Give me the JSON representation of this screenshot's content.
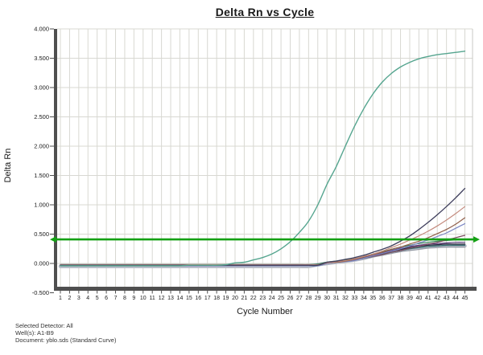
{
  "title": "Delta Rn vs Cycle",
  "y_axis": {
    "label": "Delta Rn",
    "ticks": [
      "4.000",
      "3.500",
      "3.000",
      "2.500",
      "2.000",
      "1.500",
      "1.000",
      "0.500",
      "0.000",
      "-0.500"
    ]
  },
  "x_axis": {
    "label": "Cycle Number",
    "ticks": [
      1,
      2,
      3,
      4,
      5,
      6,
      7,
      8,
      9,
      10,
      11,
      12,
      13,
      14,
      15,
      16,
      17,
      18,
      19,
      20,
      21,
      22,
      23,
      24,
      25,
      26,
      27,
      28,
      29,
      30,
      31,
      32,
      33,
      34,
      35,
      36,
      37,
      38,
      39,
      40,
      41,
      42,
      43,
      44,
      45
    ]
  },
  "footer": {
    "lines": [
      "Selected Detector: All",
      "Well(s): A1-B9",
      "Document: yblo.sds (Standard Curve)"
    ]
  },
  "chart_data": {
    "type": "line",
    "title": "Delta Rn vs Cycle",
    "xlabel": "Cycle Number",
    "ylabel": "Delta Rn",
    "xlim": [
      1,
      45
    ],
    "ylim": [
      -0.5,
      4.0
    ],
    "grid": true,
    "grid_color": "#d8d8d2",
    "axis_color": "#4f4f4f",
    "threshold": {
      "value": 0.41,
      "color": "#14a014"
    },
    "series_note": "values are Delta Rn per cycle; baseline value holds from cycle 1 until tail_start, then tail lists one value per cycle to 45",
    "series": [
      {
        "name": "curve-gray-band",
        "color": "#b6bac5",
        "width": 4.5,
        "baseline": -0.05,
        "tail_start": 29,
        "tail": [
          -0.02,
          0.0,
          0.02,
          0.04,
          0.06,
          0.09,
          0.13,
          0.16,
          0.2,
          0.23,
          0.26,
          0.28,
          0.29,
          0.3,
          0.3,
          0.3,
          0.3
        ]
      },
      {
        "name": "curve-medium-gray",
        "color": "#9298a3",
        "width": 1.2,
        "baseline": -0.03,
        "tail_start": 30,
        "tail": [
          0.0,
          0.02,
          0.04,
          0.06,
          0.08,
          0.11,
          0.14,
          0.17,
          0.2,
          0.22,
          0.24,
          0.26,
          0.27,
          0.28,
          0.28,
          0.28
        ]
      },
      {
        "name": "curve-dark-teal",
        "color": "#2f6b6b",
        "width": 1.2,
        "baseline": -0.04,
        "tail_start": 30,
        "tail": [
          0.0,
          0.02,
          0.04,
          0.06,
          0.09,
          0.12,
          0.16,
          0.19,
          0.22,
          0.25,
          0.27,
          0.29,
          0.3,
          0.31,
          0.31,
          0.31
        ]
      },
      {
        "name": "curve-dark-navy",
        "color": "#28283e",
        "width": 1.3,
        "baseline": -0.02,
        "tail_start": 30,
        "tail": [
          0.01,
          0.03,
          0.05,
          0.08,
          0.1,
          0.13,
          0.17,
          0.21,
          0.24,
          0.27,
          0.29,
          0.31,
          0.32,
          0.33,
          0.33,
          0.33
        ]
      },
      {
        "name": "curve-purple",
        "color": "#5e3b7a",
        "width": 1.2,
        "baseline": -0.03,
        "tail_start": 30,
        "tail": [
          0.01,
          0.03,
          0.05,
          0.08,
          0.11,
          0.14,
          0.18,
          0.22,
          0.26,
          0.29,
          0.31,
          0.33,
          0.34,
          0.35,
          0.36,
          0.36
        ]
      },
      {
        "name": "curve-green",
        "color": "#2e7d50",
        "width": 1.2,
        "baseline": -0.02,
        "tail_start": 29,
        "tail": [
          -0.01,
          0.02,
          0.04,
          0.06,
          0.08,
          0.12,
          0.16,
          0.2,
          0.24,
          0.28,
          0.31,
          0.34,
          0.36,
          0.38,
          0.39,
          0.4,
          0.4
        ]
      },
      {
        "name": "curve-maroon",
        "color": "#7a4a5e",
        "width": 1.2,
        "baseline": -0.03,
        "tail_start": 30,
        "tail": [
          0.01,
          0.02,
          0.04,
          0.06,
          0.09,
          0.12,
          0.15,
          0.19,
          0.22,
          0.26,
          0.29,
          0.33,
          0.36,
          0.4,
          0.44,
          0.48
        ]
      },
      {
        "name": "curve-periwinkle",
        "color": "#7c87c3",
        "width": 1.2,
        "baseline": -0.04,
        "tail_start": 30,
        "tail": [
          0.0,
          0.02,
          0.03,
          0.05,
          0.09,
          0.13,
          0.17,
          0.21,
          0.25,
          0.3,
          0.35,
          0.4,
          0.46,
          0.52,
          0.6,
          0.68
        ]
      },
      {
        "name": "curve-brown",
        "color": "#91604b",
        "width": 1.2,
        "baseline": -0.03,
        "tail_start": 30,
        "tail": [
          0.01,
          0.02,
          0.04,
          0.07,
          0.11,
          0.15,
          0.19,
          0.24,
          0.28,
          0.33,
          0.38,
          0.44,
          0.51,
          0.58,
          0.67,
          0.78
        ]
      },
      {
        "name": "curve-salmon",
        "color": "#c48b7e",
        "width": 1.2,
        "baseline": -0.02,
        "tail_start": 30,
        "tail": [
          0.01,
          0.03,
          0.05,
          0.08,
          0.12,
          0.16,
          0.21,
          0.27,
          0.33,
          0.4,
          0.47,
          0.55,
          0.64,
          0.74,
          0.85,
          0.97
        ]
      },
      {
        "name": "curve-navy",
        "color": "#3e3e5c",
        "width": 1.3,
        "baseline": -0.03,
        "tail_start": 30,
        "tail": [
          0.02,
          0.04,
          0.07,
          0.1,
          0.14,
          0.19,
          0.24,
          0.3,
          0.38,
          0.47,
          0.58,
          0.7,
          0.83,
          0.97,
          1.12,
          1.28
        ]
      },
      {
        "name": "curve-teal-main",
        "color": "#55a58f",
        "width": 1.4,
        "baseline": -0.04,
        "tail_start": 15,
        "tail": [
          -0.03,
          -0.03,
          -0.03,
          -0.03,
          -0.02,
          0.01,
          0.02,
          0.06,
          0.1,
          0.16,
          0.25,
          0.37,
          0.53,
          0.72,
          1.0,
          1.35,
          1.65,
          2.0,
          2.34,
          2.64,
          2.89,
          3.09,
          3.24,
          3.35,
          3.43,
          3.49,
          3.53,
          3.56,
          3.58,
          3.6,
          3.62
        ]
      }
    ]
  }
}
